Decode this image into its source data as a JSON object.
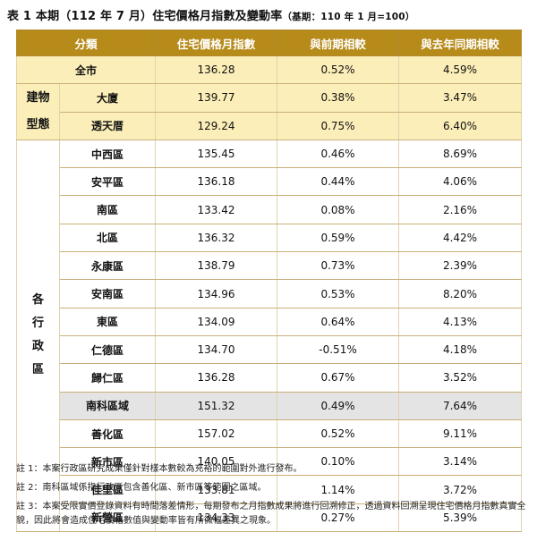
{
  "title": {
    "main": "表 1 本期（112 年 7 月）住宅價格月指數及變動率",
    "base": "（基期：110 年 1 月=100）"
  },
  "table": {
    "headers": [
      "分類",
      "住宅價格月指數",
      "與前期相較",
      "與去年同期相較"
    ],
    "total": {
      "label": "全市",
      "index": "136.28",
      "mom": "0.52%",
      "yoy": "4.59%"
    },
    "building_group": {
      "line1": "建物",
      "line2": "型態"
    },
    "building_rows": [
      {
        "label": "大廈",
        "index": "139.77",
        "mom": "0.38%",
        "yoy": "3.47%"
      },
      {
        "label": "透天厝",
        "index": "129.24",
        "mom": "0.75%",
        "yoy": "6.40%"
      }
    ],
    "district_group": {
      "c1": "各",
      "c2": "行",
      "c3": "政",
      "c4": "區"
    },
    "district_rows": [
      {
        "label": "中西區",
        "index": "135.45",
        "mom": "0.46%",
        "yoy": "8.69%"
      },
      {
        "label": "安平區",
        "index": "136.18",
        "mom": "0.44%",
        "yoy": "4.06%"
      },
      {
        "label": "南區",
        "index": "133.42",
        "mom": "0.08%",
        "yoy": "2.16%"
      },
      {
        "label": "北區",
        "index": "136.32",
        "mom": "0.59%",
        "yoy": "4.42%"
      },
      {
        "label": "永康區",
        "index": "138.79",
        "mom": "0.73%",
        "yoy": "2.39%"
      },
      {
        "label": "安南區",
        "index": "134.96",
        "mom": "0.53%",
        "yoy": "8.20%"
      },
      {
        "label": "東區",
        "index": "134.09",
        "mom": "0.64%",
        "yoy": "4.13%"
      },
      {
        "label": "仁德區",
        "index": "134.70",
        "mom": "-0.51%",
        "yoy": "4.18%"
      },
      {
        "label": "歸仁區",
        "index": "136.28",
        "mom": "0.67%",
        "yoy": "3.52%"
      },
      {
        "label": "南科區域",
        "index": "151.32",
        "mom": "0.49%",
        "yoy": "7.64%"
      },
      {
        "label": "善化區",
        "index": "157.02",
        "mom": "0.52%",
        "yoy": "9.11%"
      },
      {
        "label": "新市區",
        "index": "140.05",
        "mom": "0.10%",
        "yoy": "3.14%"
      },
      {
        "label": "佳里區",
        "index": "133.81",
        "mom": "1.14%",
        "yoy": "3.72%"
      },
      {
        "label": "新營區",
        "index": "134.33",
        "mom": "0.27%",
        "yoy": "5.39%"
      }
    ]
  },
  "notes": [
    "註 1：本案行政區研究成果僅針對樣本數較為充裕的範圍對外進行發布。",
    "註 2：南科區域係指行政區包含善化區、新市區等範圍之區域。",
    "註 3：本案受限實價登錄資料有時間落差情形，每期發布之月指數成果將進行回溯修正，透過資料回溯呈現住宅價格月指數真實全貌，因此將會造成住宅價格數值與變動率皆有所微幅差異之現象。"
  ],
  "colors": {
    "header": "#b78b1a",
    "yellow": "#fbeeb8",
    "highlight": "#e4e4e4",
    "rule": "#c9b07a"
  }
}
